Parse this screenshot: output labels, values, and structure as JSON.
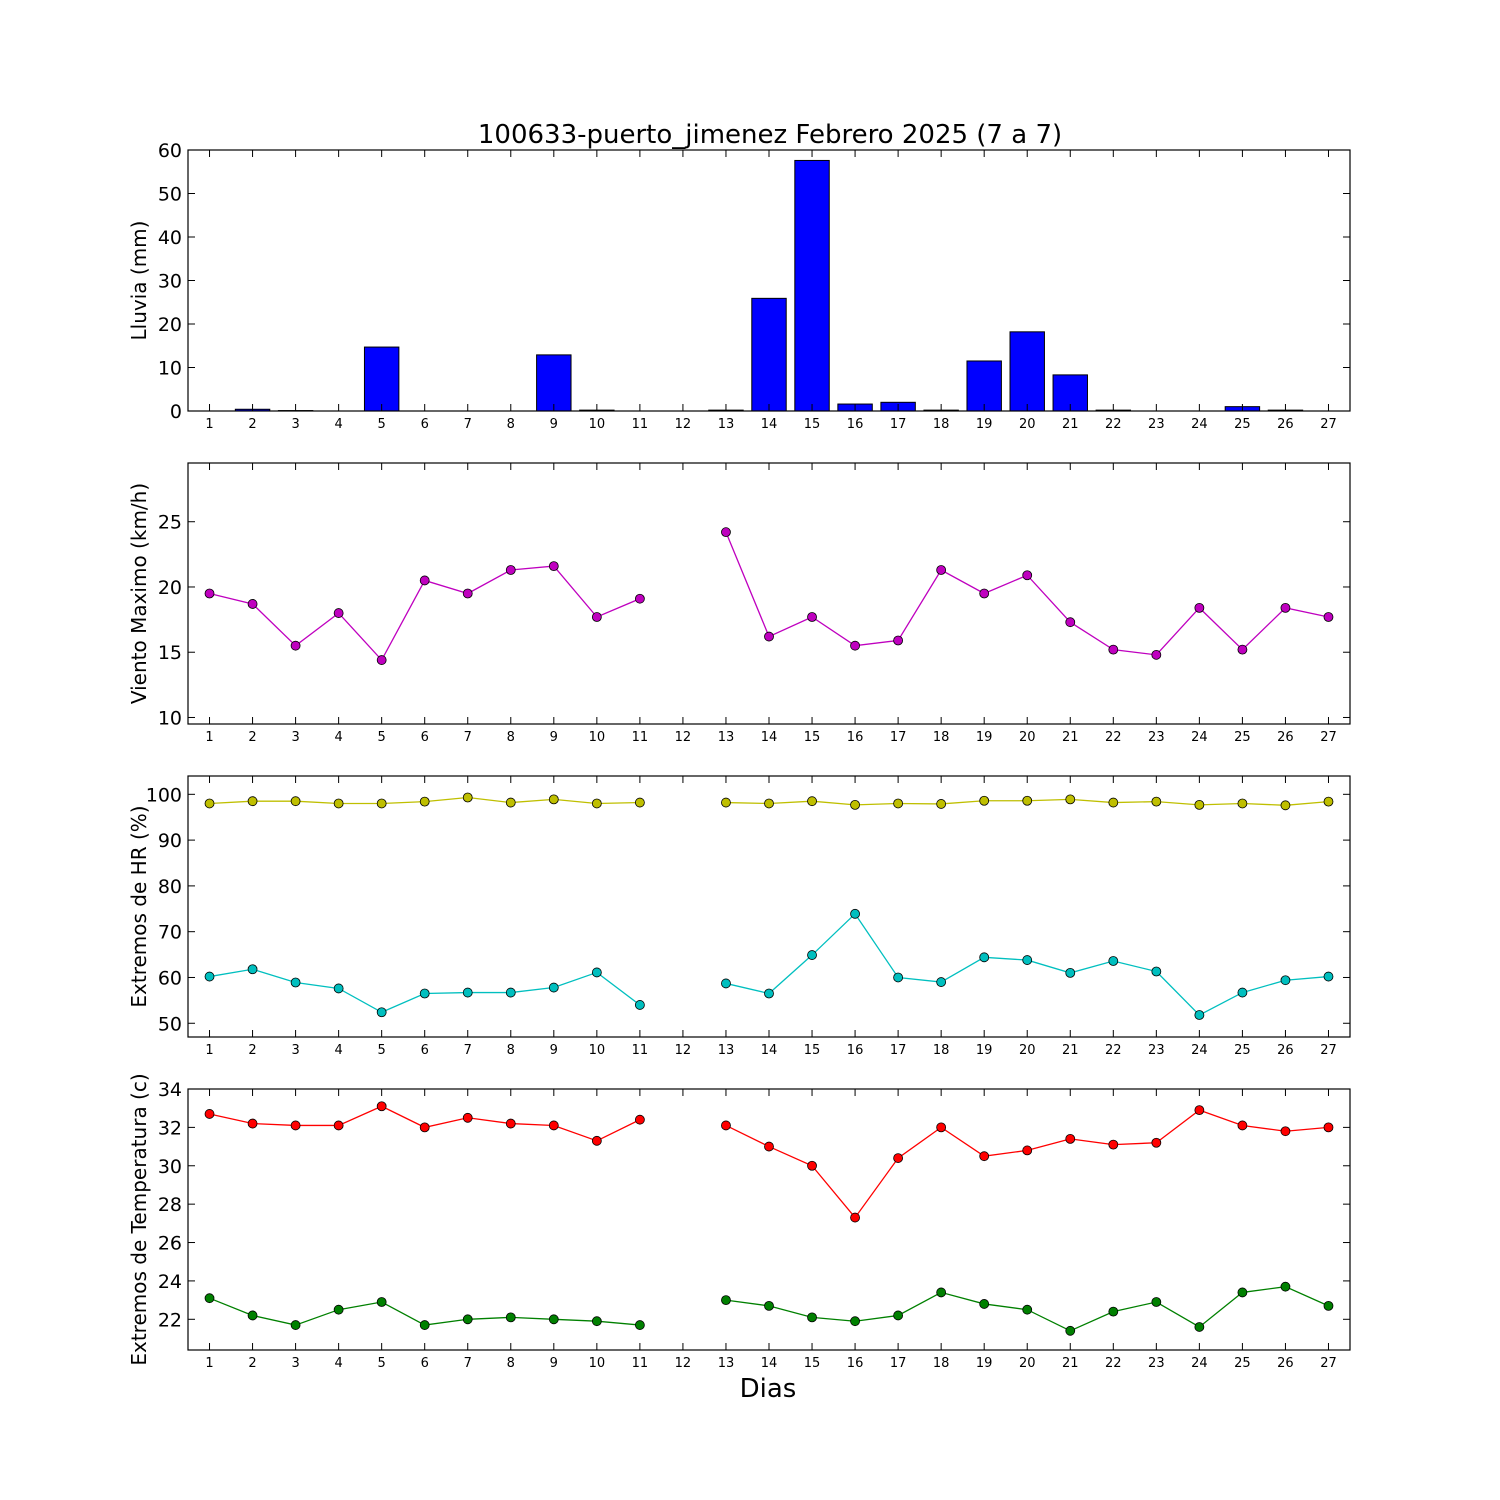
{
  "title": "100633-puerto_jimenez Febrero 2025  (7 a 7)",
  "xlabel": "Dias",
  "chart_data": [
    {
      "type": "bar",
      "ylabel": "Lluvia (mm)",
      "ylim": [
        0,
        60
      ],
      "yticks": [
        0,
        10,
        20,
        30,
        40,
        50,
        60
      ],
      "xticks": [
        1,
        2,
        3,
        4,
        5,
        6,
        7,
        8,
        9,
        10,
        11,
        12,
        13,
        14,
        15,
        16,
        17,
        18,
        19,
        20,
        21,
        22,
        23,
        24,
        25,
        26,
        27
      ],
      "grid": false,
      "series": [
        {
          "color": "#0000ff",
          "x": [
            1,
            2,
            3,
            4,
            5,
            6,
            7,
            8,
            9,
            10,
            11,
            12,
            13,
            14,
            15,
            16,
            17,
            18,
            19,
            20,
            21,
            22,
            23,
            24,
            25,
            26,
            27
          ],
          "values": [
            0,
            0.4,
            0.1,
            0,
            14.7,
            0,
            0,
            0,
            12.9,
            0.2,
            0,
            0,
            0.2,
            25.9,
            57.6,
            1.6,
            2.0,
            0.2,
            11.5,
            18.2,
            8.3,
            0.2,
            0,
            0,
            1.0,
            0.2,
            0
          ]
        }
      ]
    },
    {
      "type": "line",
      "ylabel": "Viento Maximo (km/h)",
      "ylim": [
        9.5,
        29.5
      ],
      "yticks": [
        10,
        15,
        20,
        25
      ],
      "xticks": [
        1,
        2,
        3,
        4,
        5,
        6,
        7,
        8,
        9,
        10,
        11,
        12,
        13,
        14,
        15,
        16,
        17,
        18,
        19,
        20,
        21,
        22,
        23,
        24,
        25,
        26,
        27
      ],
      "grid": false,
      "series": [
        {
          "color": "#bf00bf",
          "x": [
            1,
            2,
            3,
            4,
            5,
            6,
            7,
            8,
            9,
            10,
            11,
            12,
            13,
            14,
            15,
            16,
            17,
            18,
            19,
            20,
            21,
            22,
            23,
            24,
            25,
            26,
            27
          ],
          "values": [
            19.5,
            18.7,
            15.5,
            18.0,
            14.4,
            20.5,
            19.5,
            21.3,
            21.6,
            17.7,
            19.1,
            null,
            24.2,
            16.2,
            17.7,
            15.5,
            15.9,
            21.3,
            19.5,
            20.9,
            17.3,
            15.2,
            14.8,
            18.4,
            15.2,
            18.4,
            17.7
          ]
        }
      ]
    },
    {
      "type": "line",
      "ylabel": "Extremos de HR (%)",
      "ylim": [
        47,
        104
      ],
      "yticks": [
        50,
        60,
        70,
        80,
        90,
        100
      ],
      "xticks": [
        1,
        2,
        3,
        4,
        5,
        6,
        7,
        8,
        9,
        10,
        11,
        12,
        13,
        14,
        15,
        16,
        17,
        18,
        19,
        20,
        21,
        22,
        23,
        24,
        25,
        26,
        27
      ],
      "grid": false,
      "series": [
        {
          "color": "#bfbf00",
          "x": [
            1,
            2,
            3,
            4,
            5,
            6,
            7,
            8,
            9,
            10,
            11,
            12,
            13,
            14,
            15,
            16,
            17,
            18,
            19,
            20,
            21,
            22,
            23,
            24,
            25,
            26,
            27
          ],
          "values": [
            98.0,
            98.5,
            98.5,
            98.0,
            98.0,
            98.4,
            99.3,
            98.2,
            98.9,
            98.0,
            98.2,
            null,
            98.2,
            98.0,
            98.5,
            97.7,
            98.0,
            97.9,
            98.6,
            98.6,
            98.9,
            98.2,
            98.4,
            97.7,
            98.0,
            97.6,
            98.4
          ]
        },
        {
          "color": "#00bfbf",
          "x": [
            1,
            2,
            3,
            4,
            5,
            6,
            7,
            8,
            9,
            10,
            11,
            12,
            13,
            14,
            15,
            16,
            17,
            18,
            19,
            20,
            21,
            22,
            23,
            24,
            25,
            26,
            27
          ],
          "values": [
            60.2,
            61.8,
            58.9,
            57.6,
            52.4,
            56.5,
            56.7,
            56.7,
            57.8,
            61.1,
            54.0,
            null,
            58.7,
            56.5,
            64.9,
            73.9,
            60.0,
            59.0,
            64.4,
            63.8,
            61.0,
            63.6,
            61.3,
            51.8,
            56.7,
            59.4,
            60.2
          ]
        }
      ]
    },
    {
      "type": "line",
      "ylabel": "Extremos de Temperatura (c)",
      "ylim": [
        20.4,
        34
      ],
      "yticks": [
        22,
        24,
        26,
        28,
        30,
        32,
        34
      ],
      "xticks": [
        1,
        2,
        3,
        4,
        5,
        6,
        7,
        8,
        9,
        10,
        11,
        12,
        13,
        14,
        15,
        16,
        17,
        18,
        19,
        20,
        21,
        22,
        23,
        24,
        25,
        26,
        27
      ],
      "grid": false,
      "series": [
        {
          "color": "#ff0000",
          "x": [
            1,
            2,
            3,
            4,
            5,
            6,
            7,
            8,
            9,
            10,
            11,
            12,
            13,
            14,
            15,
            16,
            17,
            18,
            19,
            20,
            21,
            22,
            23,
            24,
            25,
            26,
            27
          ],
          "values": [
            32.7,
            32.2,
            32.1,
            32.1,
            33.1,
            32.0,
            32.5,
            32.2,
            32.1,
            31.3,
            32.4,
            null,
            32.1,
            31.0,
            30.0,
            27.3,
            30.4,
            32.0,
            30.5,
            30.8,
            31.4,
            31.1,
            31.2,
            32.9,
            32.1,
            31.8,
            32.0
          ]
        },
        {
          "color": "#008000",
          "x": [
            1,
            2,
            3,
            4,
            5,
            6,
            7,
            8,
            9,
            10,
            11,
            12,
            13,
            14,
            15,
            16,
            17,
            18,
            19,
            20,
            21,
            22,
            23,
            24,
            25,
            26,
            27
          ],
          "values": [
            23.1,
            22.2,
            21.7,
            22.5,
            22.9,
            21.7,
            22.0,
            22.1,
            22.0,
            21.9,
            21.7,
            null,
            23.0,
            22.7,
            22.1,
            21.9,
            22.2,
            23.4,
            22.8,
            22.5,
            21.4,
            22.4,
            22.9,
            21.6,
            23.4,
            23.7,
            22.7
          ]
        }
      ]
    }
  ]
}
